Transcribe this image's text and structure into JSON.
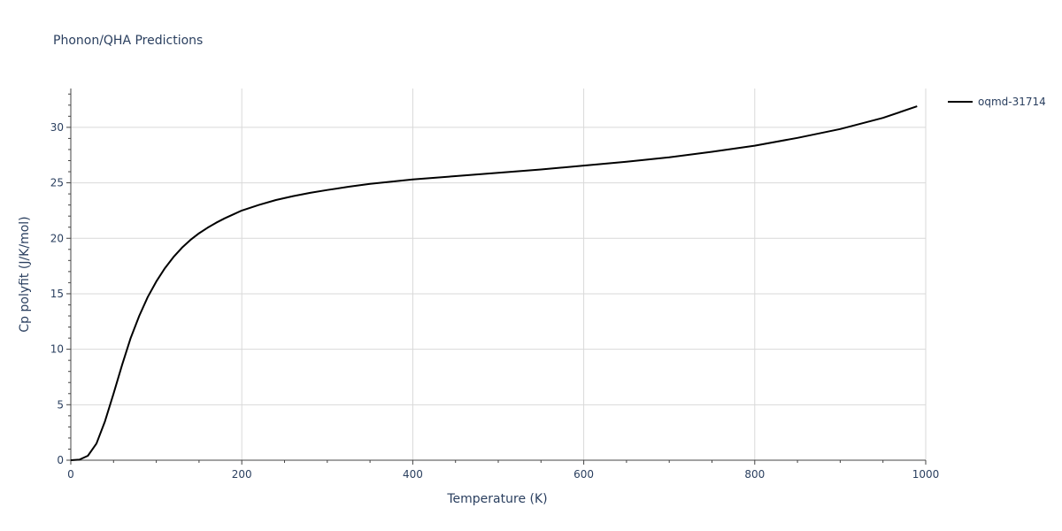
{
  "chart_data": {
    "type": "line",
    "title": "Phonon/QHA Predictions",
    "xlabel": "Temperature (K)",
    "ylabel": "Cp polyfit (J/K/mol)",
    "xlim": [
      0,
      1000
    ],
    "ylim": [
      0,
      33.5
    ],
    "x_ticks": [
      0,
      200,
      400,
      600,
      800,
      1000
    ],
    "y_ticks": [
      0,
      5,
      10,
      15,
      20,
      25,
      30
    ],
    "grid": true,
    "legend_position": "right",
    "series": [
      {
        "name": "oqmd-31714",
        "color": "#000000",
        "x": [
          0,
          10,
          20,
          30,
          40,
          50,
          60,
          70,
          80,
          90,
          100,
          110,
          120,
          130,
          140,
          150,
          160,
          170,
          180,
          190,
          200,
          220,
          240,
          260,
          280,
          300,
          325,
          350,
          375,
          400,
          450,
          500,
          550,
          600,
          650,
          700,
          750,
          800,
          850,
          900,
          950,
          990
        ],
        "y": [
          0,
          0.05,
          0.4,
          1.5,
          3.5,
          6.0,
          8.6,
          11.0,
          13.0,
          14.7,
          16.1,
          17.3,
          18.3,
          19.15,
          19.85,
          20.45,
          20.95,
          21.4,
          21.8,
          22.15,
          22.5,
          23.0,
          23.45,
          23.8,
          24.1,
          24.35,
          24.65,
          24.9,
          25.1,
          25.3,
          25.6,
          25.9,
          26.2,
          26.55,
          26.9,
          27.3,
          27.8,
          28.35,
          29.05,
          29.85,
          30.85,
          31.9
        ]
      }
    ]
  }
}
